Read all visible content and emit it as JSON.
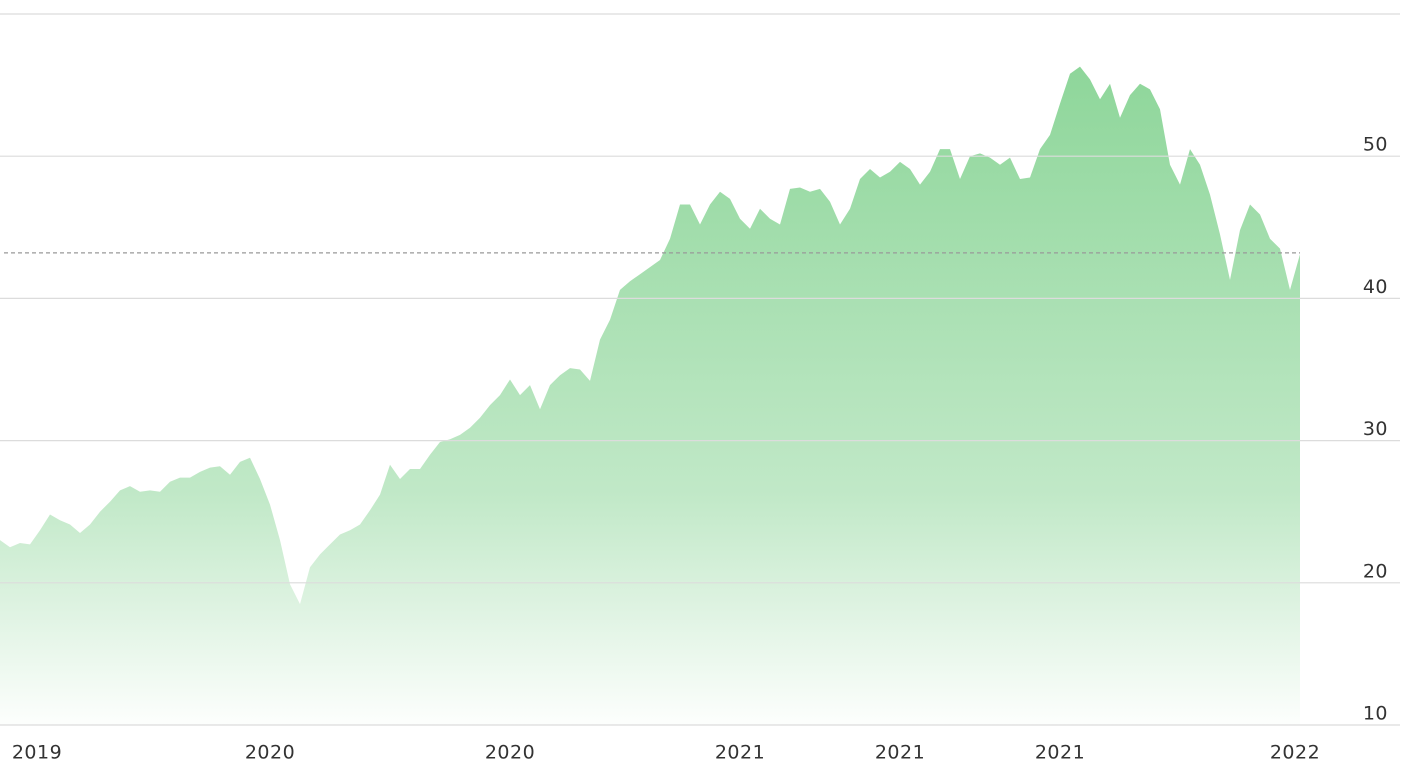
{
  "chart_data": {
    "type": "area",
    "values": [
      23.0,
      22.5,
      22.8,
      22.7,
      23.7,
      24.8,
      24.4,
      24.1,
      23.5,
      24.1,
      25.0,
      25.7,
      26.5,
      26.8,
      26.4,
      26.5,
      26.4,
      27.1,
      27.4,
      27.4,
      27.8,
      28.1,
      28.2,
      27.6,
      28.5,
      28.8,
      27.3,
      25.5,
      23.0,
      19.9,
      18.5,
      21.1,
      22.0,
      22.7,
      23.4,
      23.7,
      24.1,
      25.1,
      26.2,
      28.3,
      27.3,
      28.0,
      28.0,
      29.0,
      29.9,
      30.1,
      30.4,
      30.9,
      31.6,
      32.5,
      33.2,
      34.3,
      33.2,
      33.9,
      32.2,
      33.9,
      34.6,
      35.1,
      35.0,
      34.2,
      37.1,
      38.5,
      40.6,
      41.2,
      41.7,
      42.2,
      42.7,
      44.2,
      46.6,
      46.6,
      45.2,
      46.6,
      47.5,
      47.0,
      45.6,
      44.9,
      46.3,
      45.6,
      45.2,
      47.7,
      47.8,
      47.5,
      47.7,
      46.8,
      45.2,
      46.3,
      48.4,
      49.1,
      48.5,
      48.9,
      49.6,
      49.1,
      48.0,
      48.9,
      50.5,
      50.5,
      48.4,
      50.0,
      50.2,
      49.9,
      49.4,
      49.9,
      48.4,
      48.5,
      50.5,
      51.5,
      53.7,
      55.8,
      56.3,
      55.4,
      54.0,
      55.1,
      52.7,
      54.3,
      55.1,
      54.7,
      53.3,
      49.4,
      48.0,
      50.5,
      49.4,
      47.3,
      44.5,
      41.3,
      44.8,
      46.6,
      45.9,
      44.2,
      43.5,
      40.6,
      43.1
    ],
    "color": "#8ed69a",
    "xlim": [
      0,
      141.6
    ],
    "xticks": [
      {
        "value": 3.7,
        "label": "2019"
      },
      {
        "value": 27,
        "label": "2020"
      },
      {
        "value": 51,
        "label": "2020"
      },
      {
        "value": 74,
        "label": "2021"
      },
      {
        "value": 90,
        "label": "2021"
      },
      {
        "value": 106,
        "label": "2021"
      },
      {
        "value": 129.5,
        "label": "2022"
      }
    ],
    "ylim": [
      10,
      60
    ],
    "yticks": [
      10,
      20,
      30,
      40,
      50
    ],
    "reference_line": 43.2,
    "grid": true
  }
}
